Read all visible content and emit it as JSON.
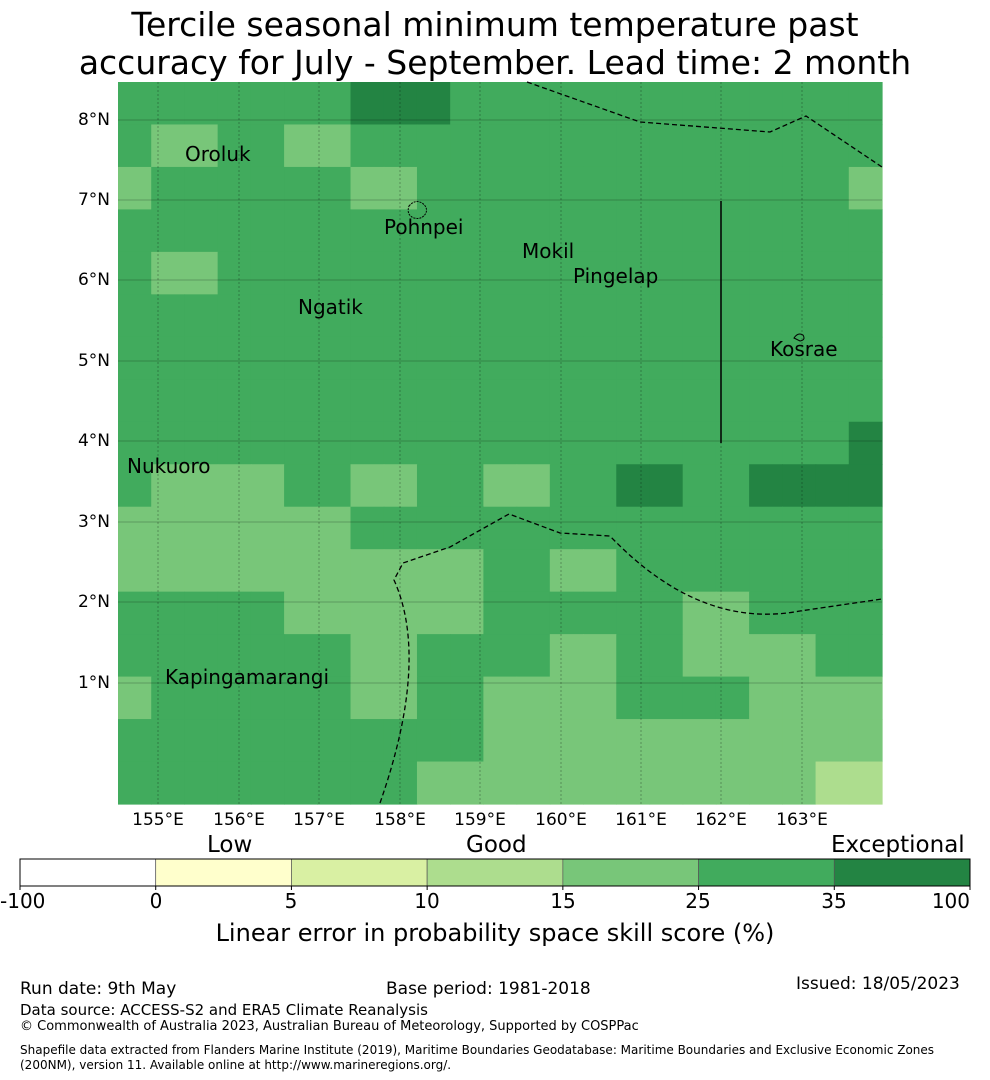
{
  "title": {
    "line1": "Tercile seasonal minimum temperature past",
    "line2": "accuracy for July - September. Lead time: 2 month"
  },
  "map": {
    "lat_labels": [
      "8°N",
      "7°N",
      "6°N",
      "5°N",
      "4°N",
      "3°N",
      "2°N",
      "1°N"
    ],
    "lon_labels": [
      "155°E",
      "156°E",
      "157°E",
      "158°E",
      "159°E",
      "160°E",
      "161°E",
      "162°E",
      "163°E"
    ],
    "places": [
      "Oroluk",
      "Pohnpei",
      "Mokil",
      "Pingelap",
      "Ngatik",
      "Kosrae",
      "Nukuoro",
      "Kapingamarangi"
    ],
    "grid_levels": [
      [
        3,
        3,
        3,
        3,
        3,
        3,
        3,
        4,
        4,
        4,
        3,
        3,
        3,
        3,
        3,
        3,
        3,
        3,
        3,
        3,
        3,
        3,
        3
      ],
      [
        3,
        2,
        2,
        3,
        3,
        2,
        2,
        3,
        3,
        3,
        3,
        3,
        3,
        3,
        3,
        3,
        3,
        3,
        3,
        3,
        3,
        3,
        3
      ],
      [
        2,
        3,
        3,
        3,
        3,
        3,
        3,
        2,
        2,
        3,
        3,
        3,
        3,
        3,
        3,
        3,
        3,
        3,
        3,
        3,
        3,
        3,
        2
      ],
      [
        3,
        3,
        3,
        3,
        3,
        3,
        3,
        3,
        3,
        3,
        3,
        3,
        3,
        3,
        3,
        3,
        3,
        3,
        3,
        3,
        3,
        3,
        3
      ],
      [
        3,
        2,
        2,
        3,
        3,
        3,
        3,
        3,
        3,
        3,
        3,
        3,
        3,
        3,
        3,
        3,
        3,
        3,
        3,
        3,
        3,
        3,
        3
      ],
      [
        3,
        3,
        3,
        3,
        3,
        3,
        3,
        3,
        3,
        3,
        3,
        3,
        3,
        3,
        3,
        3,
        3,
        3,
        3,
        3,
        3,
        3,
        3
      ],
      [
        3,
        3,
        3,
        3,
        3,
        3,
        3,
        3,
        3,
        3,
        3,
        3,
        3,
        3,
        3,
        3,
        3,
        3,
        3,
        3,
        3,
        3,
        3
      ],
      [
        3,
        3,
        3,
        3,
        3,
        3,
        3,
        3,
        3,
        3,
        3,
        3,
        3,
        3,
        3,
        3,
        3,
        3,
        3,
        3,
        3,
        3,
        3
      ],
      [
        3,
        3,
        3,
        3,
        3,
        3,
        3,
        3,
        3,
        3,
        3,
        3,
        3,
        3,
        3,
        3,
        3,
        3,
        3,
        3,
        3,
        3,
        4
      ],
      [
        3,
        2,
        2,
        2,
        2,
        3,
        3,
        2,
        2,
        3,
        3,
        2,
        2,
        3,
        3,
        4,
        4,
        3,
        3,
        4,
        4,
        4,
        4
      ],
      [
        2,
        2,
        2,
        2,
        2,
        2,
        2,
        3,
        3,
        3,
        3,
        3,
        3,
        3,
        3,
        3,
        3,
        3,
        3,
        3,
        3,
        3,
        3
      ],
      [
        2,
        2,
        2,
        2,
        2,
        2,
        2,
        2,
        2,
        2,
        2,
        3,
        3,
        2,
        2,
        3,
        3,
        3,
        3,
        3,
        3,
        3,
        3
      ],
      [
        3,
        3,
        3,
        3,
        3,
        2,
        2,
        2,
        2,
        2,
        2,
        3,
        3,
        3,
        3,
        3,
        3,
        2,
        2,
        3,
        3,
        3,
        3
      ],
      [
        3,
        3,
        3,
        3,
        3,
        3,
        3,
        2,
        2,
        3,
        3,
        3,
        3,
        2,
        2,
        3,
        3,
        2,
        2,
        2,
        2,
        3,
        3
      ],
      [
        2,
        3,
        3,
        3,
        3,
        3,
        3,
        2,
        2,
        3,
        3,
        2,
        2,
        2,
        2,
        3,
        3,
        3,
        3,
        2,
        2,
        2,
        2
      ],
      [
        3,
        3,
        3,
        3,
        3,
        3,
        3,
        3,
        3,
        3,
        3,
        2,
        2,
        2,
        2,
        2,
        2,
        2,
        2,
        2,
        2,
        2,
        2
      ],
      [
        3,
        3,
        3,
        3,
        3,
        3,
        3,
        3,
        3,
        2,
        2,
        2,
        2,
        2,
        2,
        2,
        2,
        2,
        2,
        2,
        2,
        1,
        1
      ]
    ]
  },
  "colorbar": {
    "category_labels": [
      "Low",
      "Good",
      "Exceptional"
    ],
    "tick_labels": [
      "-100",
      "0",
      "5",
      "10",
      "15",
      "25",
      "35",
      "100"
    ],
    "colors": [
      "#ffffff",
      "#ffffcc",
      "#d9f0a3",
      "#addd8e",
      "#78c679",
      "#41ab5d",
      "#238443"
    ],
    "title": "Linear error in probability space skill score (%)"
  },
  "footer": {
    "run_date": "Run date: 9th May",
    "base_period": "Base period: 1981-2018",
    "issued": "Issued: 18/05/2023",
    "data_source": "Data source: ACCESS-S2 and ERA5 Climate Reanalysis",
    "copyright": "© Commonwealth of Australia 2023, Australian Bureau of Meteorology, Supported by COSPPac",
    "shapefile_line1": "Shapefile data extracted from Flanders Marine Institute (2019), Maritime Boundaries Geodatabase: Maritime Boundaries and Exclusive Economic Zones",
    "shapefile_line2": "(200NM), version 11. Available online at http://www.marineregions.org/."
  }
}
